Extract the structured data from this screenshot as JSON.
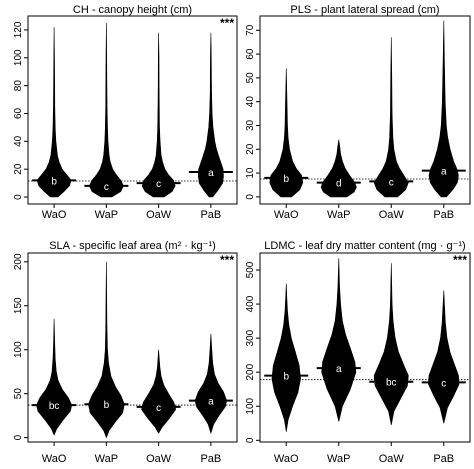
{
  "chart_data": [
    {
      "type": "violin",
      "title": "CH - canopy height (cm)",
      "significance": "***",
      "categories": [
        "WaO",
        "WaP",
        "OaW",
        "PaB"
      ],
      "ylim": [
        -5,
        130
      ],
      "yticks": [
        0,
        20,
        40,
        60,
        80,
        100,
        120
      ],
      "overall_mean": 11.5,
      "groups": [
        {
          "category": "WaO",
          "letter": "b",
          "mean": 12,
          "min": 0,
          "max": 122,
          "profile": [
            [
              0,
              0.2
            ],
            [
              4,
              0.55
            ],
            [
              8,
              0.85
            ],
            [
              12,
              0.95
            ],
            [
              16,
              0.7
            ],
            [
              20,
              0.45
            ],
            [
              25,
              0.28
            ],
            [
              30,
              0.18
            ],
            [
              40,
              0.1
            ],
            [
              50,
              0.06
            ],
            [
              65,
              0.04
            ],
            [
              80,
              0.03
            ],
            [
              100,
              0.02
            ],
            [
              122,
              0
            ]
          ]
        },
        {
          "category": "WaP",
          "letter": "c",
          "mean": 8,
          "min": 0,
          "max": 125,
          "profile": [
            [
              0,
              0.3
            ],
            [
              4,
              0.8
            ],
            [
              8,
              0.95
            ],
            [
              12,
              0.8
            ],
            [
              16,
              0.55
            ],
            [
              20,
              0.35
            ],
            [
              25,
              0.22
            ],
            [
              30,
              0.15
            ],
            [
              40,
              0.09
            ],
            [
              50,
              0.06
            ],
            [
              65,
              0.04
            ],
            [
              80,
              0.03
            ],
            [
              100,
              0.02
            ],
            [
              125,
              0
            ]
          ]
        },
        {
          "category": "OaW",
          "letter": "c",
          "mean": 10,
          "min": 0,
          "max": 118,
          "profile": [
            [
              0,
              0.3
            ],
            [
              4,
              0.75
            ],
            [
              8,
              0.92
            ],
            [
              12,
              0.82
            ],
            [
              16,
              0.55
            ],
            [
              20,
              0.35
            ],
            [
              25,
              0.22
            ],
            [
              30,
              0.14
            ],
            [
              40,
              0.08
            ],
            [
              50,
              0.05
            ],
            [
              65,
              0.035
            ],
            [
              80,
              0.025
            ],
            [
              100,
              0.02
            ],
            [
              118,
              0
            ]
          ]
        },
        {
          "category": "PaB",
          "letter": "a",
          "mean": 18,
          "min": 0,
          "max": 118,
          "profile": [
            [
              0,
              0.1
            ],
            [
              5,
              0.4
            ],
            [
              10,
              0.65
            ],
            [
              15,
              0.7
            ],
            [
              20,
              0.68
            ],
            [
              25,
              0.55
            ],
            [
              30,
              0.42
            ],
            [
              35,
              0.3
            ],
            [
              40,
              0.22
            ],
            [
              50,
              0.12
            ],
            [
              60,
              0.07
            ],
            [
              75,
              0.04
            ],
            [
              90,
              0.03
            ],
            [
              105,
              0.02
            ],
            [
              118,
              0
            ]
          ]
        }
      ]
    },
    {
      "type": "violin",
      "title": "PLS - plant lateral spread (cm)",
      "significance": "",
      "categories": [
        "WaO",
        "WaP",
        "OaW",
        "PaB"
      ],
      "ylim": [
        -3,
        76
      ],
      "yticks": [
        0,
        10,
        20,
        30,
        40,
        50,
        60,
        70
      ],
      "overall_mean": 7.5,
      "groups": [
        {
          "category": "WaO",
          "letter": "b",
          "mean": 8,
          "min": 0,
          "max": 54,
          "profile": [
            [
              0,
              0.3
            ],
            [
              3,
              0.75
            ],
            [
              6,
              0.92
            ],
            [
              9,
              0.85
            ],
            [
              12,
              0.55
            ],
            [
              15,
              0.35
            ],
            [
              20,
              0.18
            ],
            [
              25,
              0.1
            ],
            [
              30,
              0.07
            ],
            [
              40,
              0.04
            ],
            [
              54,
              0
            ]
          ]
        },
        {
          "category": "WaP",
          "letter": "d",
          "mean": 6,
          "min": 0,
          "max": 24,
          "profile": [
            [
              0,
              0.45
            ],
            [
              2,
              0.85
            ],
            [
              4,
              0.98
            ],
            [
              6,
              0.9
            ],
            [
              9,
              0.6
            ],
            [
              12,
              0.35
            ],
            [
              15,
              0.2
            ],
            [
              18,
              0.1
            ],
            [
              21,
              0.06
            ],
            [
              24,
              0
            ]
          ]
        },
        {
          "category": "OaW",
          "letter": "c",
          "mean": 6.5,
          "min": 0,
          "max": 67,
          "profile": [
            [
              0,
              0.35
            ],
            [
              3,
              0.8
            ],
            [
              6,
              0.95
            ],
            [
              9,
              0.7
            ],
            [
              12,
              0.45
            ],
            [
              15,
              0.28
            ],
            [
              20,
              0.15
            ],
            [
              25,
              0.09
            ],
            [
              35,
              0.05
            ],
            [
              50,
              0.03
            ],
            [
              67,
              0
            ]
          ]
        },
        {
          "category": "PaB",
          "letter": "a",
          "mean": 11,
          "min": 0,
          "max": 74,
          "profile": [
            [
              0,
              0.15
            ],
            [
              3,
              0.5
            ],
            [
              6,
              0.75
            ],
            [
              9,
              0.82
            ],
            [
              12,
              0.72
            ],
            [
              15,
              0.55
            ],
            [
              20,
              0.35
            ],
            [
              25,
              0.22
            ],
            [
              30,
              0.14
            ],
            [
              40,
              0.08
            ],
            [
              55,
              0.04
            ],
            [
              74,
              0
            ]
          ]
        }
      ]
    },
    {
      "type": "violin",
      "title": "SLA - specific leaf area (m² · kg⁻¹)",
      "significance": "***",
      "categories": [
        "WaO",
        "WaP",
        "OaW",
        "PaB"
      ],
      "ylim": [
        -5,
        210
      ],
      "yticks": [
        0,
        50,
        100,
        150,
        200
      ],
      "overall_mean": 37,
      "groups": [
        {
          "category": "WaO",
          "letter": "bc",
          "mean": 37,
          "min": 3,
          "max": 135,
          "profile": [
            [
              3,
              0
            ],
            [
              10,
              0.15
            ],
            [
              20,
              0.5
            ],
            [
              30,
              0.9
            ],
            [
              37,
              0.98
            ],
            [
              45,
              0.8
            ],
            [
              55,
              0.45
            ],
            [
              65,
              0.22
            ],
            [
              75,
              0.12
            ],
            [
              90,
              0.06
            ],
            [
              110,
              0.03
            ],
            [
              135,
              0
            ]
          ]
        },
        {
          "category": "WaP",
          "letter": "b",
          "mean": 38,
          "min": 0,
          "max": 200,
          "profile": [
            [
              0,
              0
            ],
            [
              8,
              0.15
            ],
            [
              18,
              0.5
            ],
            [
              28,
              0.9
            ],
            [
              38,
              1.0
            ],
            [
              48,
              0.8
            ],
            [
              58,
              0.5
            ],
            [
              70,
              0.25
            ],
            [
              85,
              0.12
            ],
            [
              100,
              0.06
            ],
            [
              130,
              0.03
            ],
            [
              160,
              0.02
            ],
            [
              200,
              0
            ]
          ]
        },
        {
          "category": "OaW",
          "letter": "c",
          "mean": 35,
          "min": 5,
          "max": 100,
          "profile": [
            [
              5,
              0
            ],
            [
              12,
              0.2
            ],
            [
              22,
              0.6
            ],
            [
              32,
              0.95
            ],
            [
              40,
              0.85
            ],
            [
              50,
              0.55
            ],
            [
              60,
              0.28
            ],
            [
              70,
              0.14
            ],
            [
              80,
              0.07
            ],
            [
              100,
              0
            ]
          ]
        },
        {
          "category": "PaB",
          "letter": "a",
          "mean": 42,
          "min": 5,
          "max": 118,
          "profile": [
            [
              5,
              0
            ],
            [
              15,
              0.15
            ],
            [
              25,
              0.45
            ],
            [
              35,
              0.8
            ],
            [
              42,
              0.88
            ],
            [
              52,
              0.7
            ],
            [
              62,
              0.4
            ],
            [
              72,
              0.2
            ],
            [
              85,
              0.1
            ],
            [
              100,
              0.05
            ],
            [
              118,
              0
            ]
          ]
        }
      ]
    },
    {
      "type": "violin",
      "title": "LDMC - leaf dry matter content (mg · g⁻¹)",
      "significance": "***",
      "categories": [
        "WaO",
        "WaP",
        "OaW",
        "PaB"
      ],
      "ylim": [
        -5,
        550
      ],
      "yticks": [
        0,
        100,
        200,
        300,
        400,
        500
      ],
      "overall_mean": 178,
      "groups": [
        {
          "category": "WaO",
          "letter": "b",
          "mean": 190,
          "min": 25,
          "max": 460,
          "profile": [
            [
              25,
              0
            ],
            [
              60,
              0.1
            ],
            [
              100,
              0.35
            ],
            [
              140,
              0.65
            ],
            [
              180,
              0.8
            ],
            [
              220,
              0.72
            ],
            [
              260,
              0.5
            ],
            [
              300,
              0.28
            ],
            [
              340,
              0.14
            ],
            [
              380,
              0.07
            ],
            [
              420,
              0.03
            ],
            [
              460,
              0
            ]
          ]
        },
        {
          "category": "WaP",
          "letter": "a",
          "mean": 212,
          "min": 55,
          "max": 535,
          "profile": [
            [
              55,
              0
            ],
            [
              100,
              0.2
            ],
            [
              150,
              0.65
            ],
            [
              200,
              0.95
            ],
            [
              230,
              0.9
            ],
            [
              270,
              0.65
            ],
            [
              310,
              0.38
            ],
            [
              350,
              0.2
            ],
            [
              400,
              0.1
            ],
            [
              450,
              0.05
            ],
            [
              490,
              0.025
            ],
            [
              535,
              0
            ]
          ]
        },
        {
          "category": "OaW",
          "letter": "bc",
          "mean": 172,
          "min": 45,
          "max": 520,
          "profile": [
            [
              45,
              0
            ],
            [
              85,
              0.15
            ],
            [
              125,
              0.55
            ],
            [
              160,
              0.9
            ],
            [
              190,
              0.95
            ],
            [
              220,
              0.7
            ],
            [
              260,
              0.4
            ],
            [
              300,
              0.22
            ],
            [
              350,
              0.1
            ],
            [
              400,
              0.05
            ],
            [
              460,
              0.025
            ],
            [
              520,
              0
            ]
          ]
        },
        {
          "category": "PaB",
          "letter": "c",
          "mean": 170,
          "min": 50,
          "max": 440,
          "profile": [
            [
              50,
              0
            ],
            [
              95,
              0.2
            ],
            [
              130,
              0.55
            ],
            [
              165,
              0.85
            ],
            [
              190,
              0.82
            ],
            [
              225,
              0.58
            ],
            [
              260,
              0.34
            ],
            [
              300,
              0.18
            ],
            [
              345,
              0.09
            ],
            [
              390,
              0.045
            ],
            [
              440,
              0
            ]
          ]
        }
      ]
    }
  ]
}
